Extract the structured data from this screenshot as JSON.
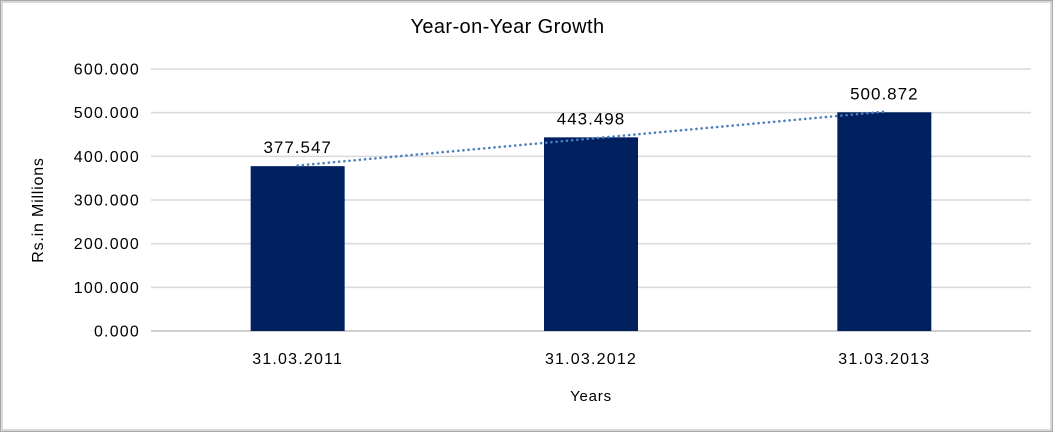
{
  "chart_data": {
    "type": "bar",
    "title": "Year-on-Year Growth",
    "xlabel": "Years",
    "ylabel": "Rs.in Millions",
    "categories": [
      "31.03.2011",
      "31.03.2012",
      "31.03.2013"
    ],
    "values": [
      377.547,
      443.498,
      500.872
    ],
    "data_labels": [
      "377.547",
      "443.498",
      "500.872"
    ],
    "y_ticks": [
      0,
      100,
      200,
      300,
      400,
      500,
      600
    ],
    "y_tick_labels": [
      "0.000",
      "100.000",
      "200.000",
      "300.000",
      "400.000",
      "500.000",
      "600.000"
    ],
    "ylim": [
      0,
      600
    ],
    "grid": true,
    "legend": "none",
    "trendline": {
      "type": "linear",
      "style": "dotted",
      "color": "#4a7ebb"
    },
    "colors": {
      "bar": "#002060",
      "gridline": "#d9d9d9",
      "axis_line": "#bfbfbf",
      "text": "#000000",
      "frame_border": "#d9d9d9"
    }
  }
}
